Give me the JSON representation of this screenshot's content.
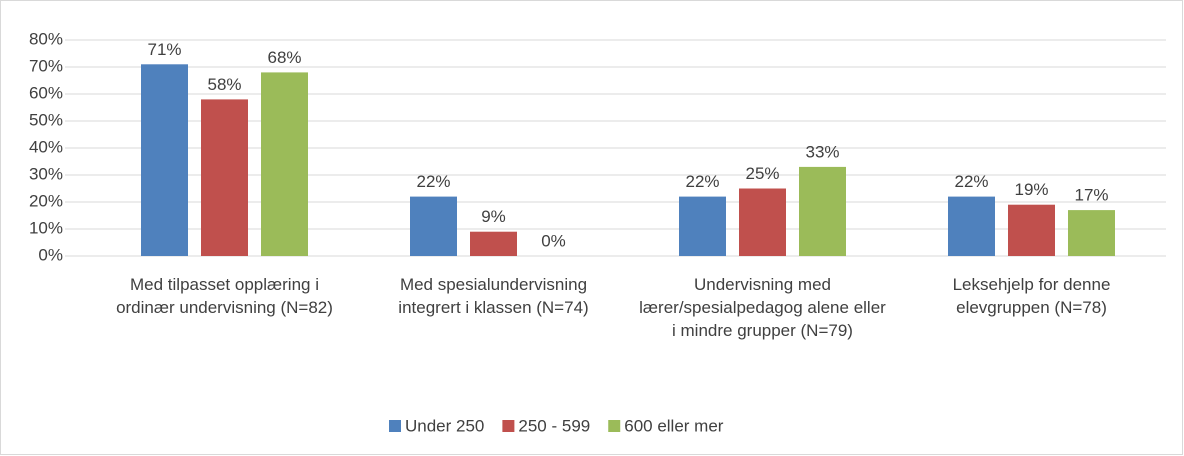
{
  "chart_data": {
    "type": "bar",
    "categories": [
      "Med tilpasset opplæring i ordinær undervisning (N=82)",
      "Med spesialundervisning integrert i klassen (N=74)",
      "Undervisning med lærer/spesialpedagog alene eller i mindre grupper (N=79)",
      "Leksehjelp for denne elevgruppen (N=78)"
    ],
    "series": [
      {
        "name": "Under 250",
        "color": "#4f81bd",
        "values": [
          71,
          22,
          22,
          22
        ],
        "value_labels": [
          "71%",
          "22%",
          "22%",
          "22%"
        ]
      },
      {
        "name": "250 - 599",
        "color": "#c0504d",
        "values": [
          58,
          9,
          25,
          19
        ],
        "value_labels": [
          "58%",
          "9%",
          "25%",
          "19%"
        ]
      },
      {
        "name": "600 eller mer",
        "color": "#9bbb59",
        "values": [
          68,
          0,
          33,
          17
        ],
        "value_labels": [
          "68%",
          "0%",
          "33%",
          "17%"
        ]
      }
    ],
    "ylim": [
      0,
      80
    ],
    "yticks": [
      {
        "value": 0,
        "label": "0%"
      },
      {
        "value": 10,
        "label": "10%"
      },
      {
        "value": 20,
        "label": "20%"
      },
      {
        "value": 30,
        "label": "30%"
      },
      {
        "value": 40,
        "label": "40%"
      },
      {
        "value": 50,
        "label": "50%"
      },
      {
        "value": 60,
        "label": "60%"
      },
      {
        "value": 70,
        "label": "70%"
      },
      {
        "value": 80,
        "label": "80%"
      }
    ],
    "grid": true,
    "legend": "bottom"
  }
}
